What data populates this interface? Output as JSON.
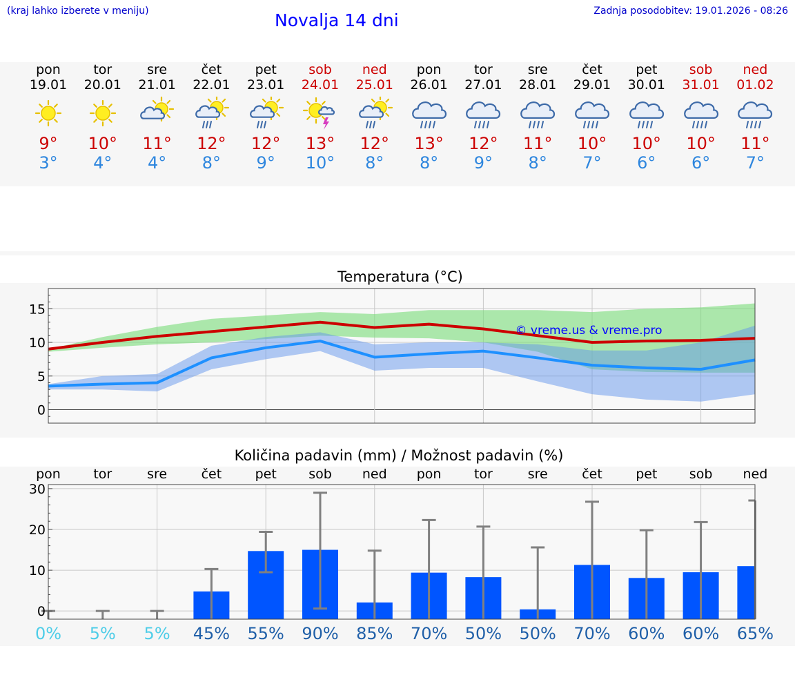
{
  "header": {
    "note": "(kraj lahko izberete v meniju)",
    "title": "Novalja 14 dni",
    "updated": "Zadnja posodobitev: 19.01.2026 - 08:26"
  },
  "colors": {
    "max": "#cc0000",
    "min": "#2e86de",
    "weekend": "#cc0000",
    "bar": "#0055ff",
    "pctLight": "#4ecde8",
    "pctDark": "#1f5fa8"
  },
  "days": [
    {
      "name": "pon",
      "date": "19.01",
      "weekend": false,
      "icon": "sunny-icon",
      "max": "9°",
      "min": "3°"
    },
    {
      "name": "tor",
      "date": "20.01",
      "weekend": false,
      "icon": "sunny-icon",
      "max": "10°",
      "min": "4°"
    },
    {
      "name": "sre",
      "date": "21.01",
      "weekend": false,
      "icon": "partly-cloudy-icon",
      "max": "11°",
      "min": "4°"
    },
    {
      "name": "čet",
      "date": "22.01",
      "weekend": false,
      "icon": "sun-cloud-rain-icon",
      "max": "12°",
      "min": "8°"
    },
    {
      "name": "pet",
      "date": "23.01",
      "weekend": false,
      "icon": "sun-cloud-rain-icon",
      "max": "12°",
      "min": "9°"
    },
    {
      "name": "sob",
      "date": "24.01",
      "weekend": true,
      "icon": "sun-thunder-icon",
      "max": "13°",
      "min": "10°"
    },
    {
      "name": "ned",
      "date": "25.01",
      "weekend": true,
      "icon": "sun-cloud-rain-icon",
      "max": "12°",
      "min": "8°"
    },
    {
      "name": "pon",
      "date": "26.01",
      "weekend": false,
      "icon": "cloud-rain-icon",
      "max": "13°",
      "min": "8°"
    },
    {
      "name": "tor",
      "date": "27.01",
      "weekend": false,
      "icon": "cloud-rain-icon",
      "max": "12°",
      "min": "9°"
    },
    {
      "name": "sre",
      "date": "28.01",
      "weekend": false,
      "icon": "cloud-rain-icon",
      "max": "11°",
      "min": "8°"
    },
    {
      "name": "čet",
      "date": "29.01",
      "weekend": false,
      "icon": "cloud-rain-icon",
      "max": "10°",
      "min": "7°"
    },
    {
      "name": "pet",
      "date": "30.01",
      "weekend": false,
      "icon": "cloud-rain-icon",
      "max": "10°",
      "min": "6°"
    },
    {
      "name": "sob",
      "date": "31.01",
      "weekend": true,
      "icon": "cloud-rain-icon",
      "max": "10°",
      "min": "6°"
    },
    {
      "name": "ned",
      "date": "01.02",
      "weekend": true,
      "icon": "cloud-rain-icon",
      "max": "11°",
      "min": "7°"
    }
  ],
  "chart_data": [
    {
      "type": "line",
      "title": "Temperatura (°C)",
      "watermark": "© vreme.us & vreme.pro",
      "ylim": [
        -2,
        18
      ],
      "yticks": [
        0,
        5,
        10,
        15
      ],
      "x": [
        0,
        1,
        2,
        3,
        4,
        5,
        6,
        7,
        8,
        9,
        10,
        11,
        12,
        13
      ],
      "series": [
        {
          "name": "max",
          "values": [
            9.0,
            10.0,
            10.9,
            11.6,
            12.3,
            13.0,
            12.2,
            12.7,
            12.0,
            11.0,
            10.0,
            10.2,
            10.3,
            10.6
          ]
        },
        {
          "name": "min",
          "values": [
            3.5,
            3.8,
            4.0,
            7.7,
            9.2,
            10.2,
            7.8,
            8.3,
            8.7,
            7.7,
            6.6,
            6.2,
            6.0,
            7.4
          ]
        }
      ],
      "bands": [
        {
          "name": "max-range",
          "upper": [
            9.0,
            10.8,
            12.3,
            13.5,
            14.0,
            14.5,
            14.2,
            14.8,
            14.8,
            14.8,
            14.5,
            15.0,
            15.2,
            15.8
          ],
          "lower": [
            8.6,
            9.2,
            9.7,
            10.0,
            10.5,
            11.0,
            10.7,
            10.6,
            10.0,
            8.6,
            6.0,
            5.6,
            5.5,
            5.5
          ]
        },
        {
          "name": "min-range",
          "upper": [
            3.8,
            5.0,
            5.3,
            9.5,
            10.8,
            11.5,
            9.7,
            10.0,
            10.0,
            9.7,
            8.8,
            8.8,
            10.0,
            12.5
          ],
          "lower": [
            3.0,
            3.0,
            2.7,
            6.0,
            7.5,
            8.7,
            5.8,
            6.2,
            6.2,
            4.2,
            2.3,
            1.5,
            1.2,
            2.3
          ]
        }
      ]
    },
    {
      "type": "bar",
      "title": "Količina padavin (mm) / Možnost padavin (%)",
      "ylim": [
        -2,
        31
      ],
      "yticks": [
        0,
        10,
        20,
        30
      ],
      "categories": [
        "pon",
        "tor",
        "sre",
        "čet",
        "pet",
        "sob",
        "ned",
        "pon",
        "tor",
        "sre",
        "čet",
        "pet",
        "sob",
        "ned"
      ],
      "values": [
        0,
        0,
        0,
        4.8,
        14.7,
        15.0,
        2.1,
        9.4,
        8.3,
        0.4,
        11.3,
        8.1,
        9.5,
        11.0
      ],
      "error_high": [
        0,
        0,
        0,
        10.3,
        19.4,
        29.0,
        14.8,
        22.3,
        20.7,
        15.6,
        26.8,
        19.8,
        21.8,
        27.1
      ],
      "error_low": [
        0,
        0,
        0,
        0,
        9.5,
        0.6,
        0,
        0,
        0,
        0,
        0,
        0,
        0,
        0
      ],
      "probability": [
        "0%",
        "5%",
        "5%",
        "45%",
        "55%",
        "90%",
        "85%",
        "70%",
        "50%",
        "50%",
        "70%",
        "60%",
        "60%",
        "65%"
      ]
    }
  ]
}
